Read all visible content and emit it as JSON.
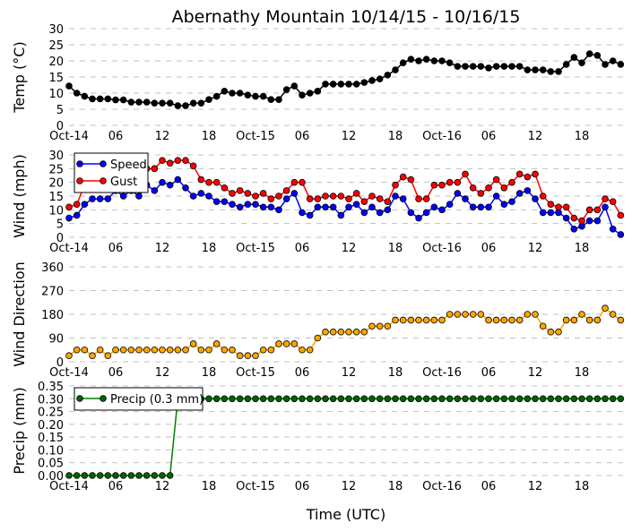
{
  "chart_data": {
    "title": "Abernathy Mountain 10/14/15 - 10/16/15",
    "xlabel": "Time (UTC)",
    "x_hours": [
      0,
      1,
      2,
      3,
      4,
      5,
      6,
      7,
      8,
      9,
      10,
      11,
      12,
      13,
      14,
      15,
      16,
      17,
      18,
      19,
      20,
      21,
      22,
      23,
      24,
      25,
      26,
      27,
      28,
      29,
      30,
      31,
      32,
      33,
      34,
      35,
      36,
      37,
      38,
      39,
      40,
      41,
      42,
      43,
      44,
      45,
      46,
      47,
      48,
      49,
      50,
      51,
      52,
      53,
      54,
      55,
      56,
      57,
      58,
      59,
      60,
      61,
      62,
      63,
      64,
      65,
      66,
      67,
      68,
      69,
      70,
      71
    ],
    "xticks": [
      {
        "hour": 0,
        "label": "Oct-14"
      },
      {
        "hour": 6,
        "label": "06"
      },
      {
        "hour": 12,
        "label": "12"
      },
      {
        "hour": 18,
        "label": "18"
      },
      {
        "hour": 24,
        "label": "Oct-15"
      },
      {
        "hour": 30,
        "label": "06"
      },
      {
        "hour": 36,
        "label": "12"
      },
      {
        "hour": 42,
        "label": "18"
      },
      {
        "hour": 48,
        "label": "Oct-16"
      },
      {
        "hour": 54,
        "label": "06"
      },
      {
        "hour": 60,
        "label": "12"
      },
      {
        "hour": 66,
        "label": "18"
      }
    ],
    "panels": [
      {
        "type": "line",
        "ylabel": "Temp ($^\\circ$C)",
        "ylabel_display": "Temp (°C)",
        "ylim": [
          0,
          30
        ],
        "yticks": [
          0,
          5,
          10,
          15,
          20,
          25,
          30
        ],
        "ytick_labels": [
          "0",
          "5",
          "10",
          "15",
          "20",
          "25",
          "30"
        ],
        "grid": true,
        "legend": null,
        "series": [
          {
            "name": "Temp",
            "color": "#000000",
            "marker_fill": "#000000",
            "values": [
              12.2,
              10,
              9,
              8.2,
              8.2,
              8.2,
              7.9,
              7.9,
              7.2,
              7.2,
              7.2,
              6.9,
              6.9,
              6.9,
              6.1,
              6.1,
              6.9,
              6.9,
              8,
              9,
              10.6,
              10,
              10,
              9.4,
              9,
              9,
              8,
              8,
              11.1,
              12.2,
              9.4,
              10,
              10.6,
              12.8,
              12.8,
              12.8,
              12.8,
              12.8,
              13.3,
              13.9,
              14.4,
              15.6,
              17.2,
              19.4,
              20.5,
              20,
              20.5,
              20,
              20,
              19.4,
              18.3,
              18.3,
              18.3,
              18.3,
              17.8,
              18.3,
              18.3,
              18.3,
              18.3,
              17.2,
              17.2,
              17.2,
              16.7,
              16.7,
              18.9,
              21.1,
              19.4,
              22.2,
              21.7,
              18.9,
              20,
              18.9
            ]
          }
        ]
      },
      {
        "type": "line",
        "ylabel_display": "Wind (mph)",
        "ylim": [
          0,
          30
        ],
        "yticks": [
          0,
          5,
          10,
          15,
          20,
          25,
          30
        ],
        "ytick_labels": [
          "0",
          "5",
          "10",
          "15",
          "20",
          "25",
          "30"
        ],
        "grid": true,
        "legend": "upper-left",
        "series": [
          {
            "name": "Speed",
            "color": "#0000ff",
            "marker_fill": "#0000ff",
            "values": [
              7,
              8,
              12,
              14,
              14,
              14,
              17,
              15,
              17,
              15,
              19,
              17,
              20,
              19,
              21,
              18,
              15,
              16,
              15,
              13,
              13,
              12,
              11,
              12,
              12,
              11,
              11,
              10,
              14,
              16,
              9,
              8,
              11,
              11,
              11,
              8,
              11,
              12,
              9,
              11,
              9,
              10,
              15,
              14,
              9,
              7,
              9,
              11,
              10,
              12,
              16,
              14,
              11,
              11,
              11,
              15,
              12,
              13,
              16,
              17,
              14,
              9,
              9,
              9,
              7,
              3,
              4,
              6,
              6,
              11,
              3,
              1
            ]
          },
          {
            "name": "Gust",
            "color": "#ff0000",
            "marker_fill": "#ff0000",
            "values": [
              11,
              12,
              19,
              22,
              24,
              23,
              25,
              24,
              24,
              24,
              25,
              25,
              28,
              27,
              28,
              28,
              26,
              21,
              20,
              20,
              18,
              16,
              17,
              16,
              15,
              16,
              14,
              15,
              17,
              20,
              20,
              14,
              14,
              15,
              15,
              15,
              14,
              16,
              13,
              15,
              14,
              13,
              19,
              22,
              21,
              14,
              14,
              19,
              19,
              20,
              20,
              23,
              18,
              16,
              18,
              21,
              18,
              20,
              23,
              22,
              23,
              15,
              12,
              11,
              11,
              7,
              6,
              10,
              10,
              14,
              13,
              8
            ]
          }
        ]
      },
      {
        "type": "line",
        "ylabel_display": "Wind Direction",
        "ylim": [
          0,
          360
        ],
        "yticks": [
          0,
          90,
          180,
          270,
          360
        ],
        "ytick_labels": [
          "0",
          "90",
          "180",
          "270",
          "360"
        ],
        "grid": true,
        "legend": null,
        "series": [
          {
            "name": "Direction",
            "color": "#ffa500",
            "marker_fill": "#ffa500",
            "values": [
              23,
              45,
              45,
              23,
              45,
              23,
              45,
              45,
              45,
              45,
              45,
              45,
              45,
              45,
              45,
              45,
              68,
              45,
              45,
              68,
              45,
              45,
              23,
              23,
              23,
              45,
              45,
              68,
              68,
              68,
              45,
              45,
              90,
              113,
              113,
              113,
              113,
              113,
              113,
              135,
              135,
              135,
              158,
              158,
              158,
              158,
              158,
              158,
              158,
              180,
              180,
              180,
              180,
              180,
              158,
              158,
              158,
              158,
              158,
              180,
              180,
              135,
              113,
              113,
              158,
              158,
              180,
              158,
              158,
              203,
              180,
              158
            ]
          }
        ]
      },
      {
        "type": "line",
        "ylabel_display": "Precip (mm)",
        "ylim": [
          0,
          0.35
        ],
        "yticks": [
          0,
          0.05,
          0.1,
          0.15,
          0.2,
          0.25,
          0.3,
          0.35
        ],
        "ytick_labels": [
          "0.00",
          "0.05",
          "0.10",
          "0.15",
          "0.20",
          "0.25",
          "0.30",
          "0.35"
        ],
        "grid": true,
        "legend": "upper-left",
        "series": [
          {
            "name": "Precip (0.3 mm)",
            "color": "#008000",
            "marker_fill": "#006400",
            "values": [
              0,
              0,
              0,
              0,
              0,
              0,
              0,
              0,
              0,
              0,
              0,
              0,
              0,
              0,
              0.3,
              0.3,
              0.3,
              0.3,
              0.3,
              0.3,
              0.3,
              0.3,
              0.3,
              0.3,
              0.3,
              0.3,
              0.3,
              0.3,
              0.3,
              0.3,
              0.3,
              0.3,
              0.3,
              0.3,
              0.3,
              0.3,
              0.3,
              0.3,
              0.3,
              0.3,
              0.3,
              0.3,
              0.3,
              0.3,
              0.3,
              0.3,
              0.3,
              0.3,
              0.3,
              0.3,
              0.3,
              0.3,
              0.3,
              0.3,
              0.3,
              0.3,
              0.3,
              0.3,
              0.3,
              0.3,
              0.3,
              0.3,
              0.3,
              0.3,
              0.3,
              0.3,
              0.3,
              0.3,
              0.3,
              0.3,
              0.3,
              0.3
            ]
          }
        ]
      }
    ]
  }
}
